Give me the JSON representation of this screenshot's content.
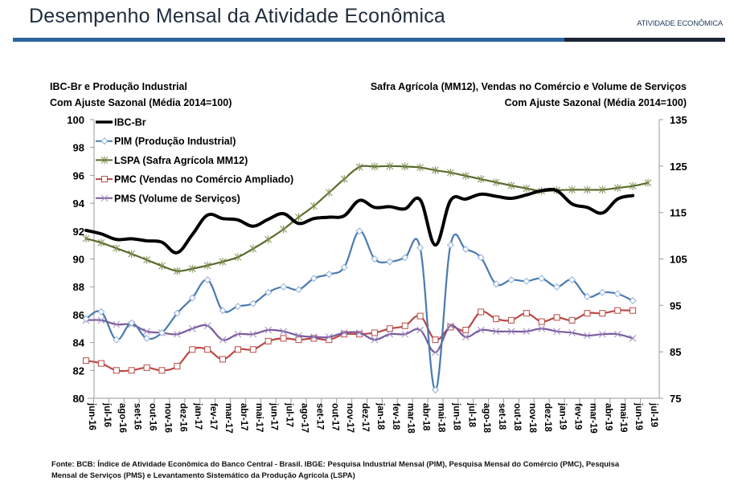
{
  "header": {
    "title": "Desempenho Mensal da Atividade Econômica",
    "section": "ATIVIDADE ECONÔMICA",
    "accent_color": "#2e65a0",
    "dark_color": "#1b2638"
  },
  "left_axis_title": {
    "line1": "IBC-Br e Produção Industrial",
    "line2": "Com Ajuste Sazonal (Média 2014=100)"
  },
  "right_axis_title": {
    "line1": "Safra Agrícola (MM12), Vendas no Comércio e Volume de Serviços",
    "line2": "Com Ajuste Sazonal (Média 2014=100)"
  },
  "footer": {
    "line1": "Fonte: BCB: Índice de Atividade Econômica do Banco Central - Brasil. IBGE: Pesquisa Industrial Mensal (PIM), Pesquisa Mensal do Comércio (PMC), Pesquisa",
    "line2": "Mensal de Serviços (PMS) e Levantamento Sistemático da Produção Agrícola (LSPA)"
  },
  "chart_data": {
    "type": "line",
    "title": "Desempenho Mensal da Atividade Econômica",
    "xlabel": "",
    "ylabel": "IBC-Br e Produção Industrial - Com Ajuste Sazonal (Média 2014=100)",
    "y2label": "Safra Agrícola (MM12), Vendas no Comércio e Volume de Serviços - Com Ajuste Sazonal (Média 2014=100)",
    "ylim": [
      80,
      100
    ],
    "y_ticks": [
      "80",
      "82",
      "84",
      "86",
      "88",
      "90",
      "92",
      "94",
      "96",
      "98",
      "100"
    ],
    "y2lim": [
      75,
      135
    ],
    "y2_ticks": [
      "75",
      "85",
      "95",
      "105",
      "115",
      "125",
      "135"
    ],
    "grid": false,
    "legend_position": "top-left",
    "categories": [
      "jun-16",
      "jul-16",
      "ago-16",
      "set-16",
      "out-16",
      "nov-16",
      "dez-16",
      "jan-17",
      "fev-17",
      "mar-17",
      "abr-17",
      "mai-17",
      "jun-17",
      "jul-17",
      "ago-17",
      "set-17",
      "out-17",
      "nov-17",
      "dez-17",
      "jan-18",
      "fev-18",
      "mar-18",
      "abr-18",
      "mai-18",
      "jun-18",
      "jul-18",
      "ago-18",
      "set-18",
      "out-18",
      "nov-18",
      "dez-18",
      "jan-19",
      "fev-19",
      "mar-19",
      "abr-19",
      "mai-19",
      "jun-19",
      "jul-19"
    ],
    "series": [
      {
        "name": "IBC-Br",
        "axis": "left",
        "color": "#000000",
        "marker": "none",
        "values": [
          92.05,
          91.8,
          91.4,
          91.45,
          91.3,
          91.2,
          90.45,
          91.75,
          93.15,
          92.9,
          92.8,
          92.35,
          92.85,
          93.25,
          92.55,
          92.9,
          93.0,
          93.1,
          94.2,
          93.7,
          93.75,
          93.6,
          94.25,
          91.0,
          94.2,
          94.3,
          94.65,
          94.5,
          94.35,
          94.6,
          94.9,
          94.9,
          93.95,
          93.7,
          93.3,
          94.3,
          94.55,
          null
        ]
      },
      {
        "name": "PIM (Produção Industrial)",
        "axis": "left",
        "color": "#4a7ab0",
        "marker": "diamond",
        "values": [
          85.7,
          86.2,
          84.2,
          85.4,
          84.3,
          84.7,
          86.1,
          87.2,
          88.5,
          86.3,
          86.6,
          86.8,
          87.6,
          88.0,
          87.8,
          88.6,
          88.9,
          89.4,
          92.0,
          90.0,
          89.8,
          90.1,
          90.8,
          80.6,
          91.0,
          90.7,
          90.1,
          88.2,
          88.5,
          88.4,
          88.6,
          88.0,
          88.5,
          87.3,
          87.6,
          87.5,
          87.0,
          null
        ]
      },
      {
        "name": "LSPA (Safra Agrícola MM12)",
        "axis": "right",
        "color": "#5a6b2e",
        "marker": "star",
        "values": [
          109.4,
          108.5,
          107.3,
          106.1,
          104.8,
          103.5,
          102.4,
          102.9,
          103.6,
          104.4,
          105.4,
          107.2,
          109.2,
          111.4,
          114.0,
          116.4,
          119.3,
          122.2,
          124.8,
          124.9,
          125.0,
          124.9,
          124.7,
          124.1,
          123.6,
          122.9,
          122.2,
          121.5,
          120.8,
          120.2,
          119.6,
          119.8,
          119.9,
          119.9,
          119.9,
          120.3,
          120.7,
          121.4
        ]
      },
      {
        "name": "PMC (Vendas no Comércio Ampliado)",
        "axis": "right",
        "color": "#b84a45",
        "marker": "square",
        "values": [
          82.7,
          82.5,
          82.0,
          82.0,
          82.2,
          82.0,
          82.3,
          83.5,
          83.5,
          82.8,
          83.5,
          83.5,
          84.1,
          84.3,
          84.2,
          84.3,
          84.2,
          84.6,
          84.6,
          84.7,
          85.0,
          85.2,
          85.9,
          84.2,
          85.1,
          84.9,
          86.2,
          85.7,
          85.6,
          86.1,
          85.5,
          85.8,
          85.6,
          86.1,
          86.1,
          86.3,
          86.3,
          null
        ],
        "note": "plotted against left-axis scale equivalents as displayed"
      },
      {
        "name": "PMS (Volume de Serviços)",
        "axis": "right",
        "color": "#7a5a9e",
        "marker": "x",
        "values": [
          85.6,
          85.6,
          85.3,
          85.3,
          84.8,
          84.7,
          84.6,
          85.0,
          85.2,
          84.2,
          84.6,
          84.6,
          84.9,
          84.8,
          84.5,
          84.4,
          84.4,
          84.7,
          84.7,
          84.2,
          84.6,
          84.6,
          84.9,
          83.3,
          85.2,
          84.4,
          84.9,
          84.8,
          84.8,
          84.8,
          85.0,
          84.8,
          84.7,
          84.5,
          84.6,
          84.6,
          84.3,
          null
        ],
        "note": "plotted against left-axis scale equivalents as displayed"
      }
    ]
  }
}
